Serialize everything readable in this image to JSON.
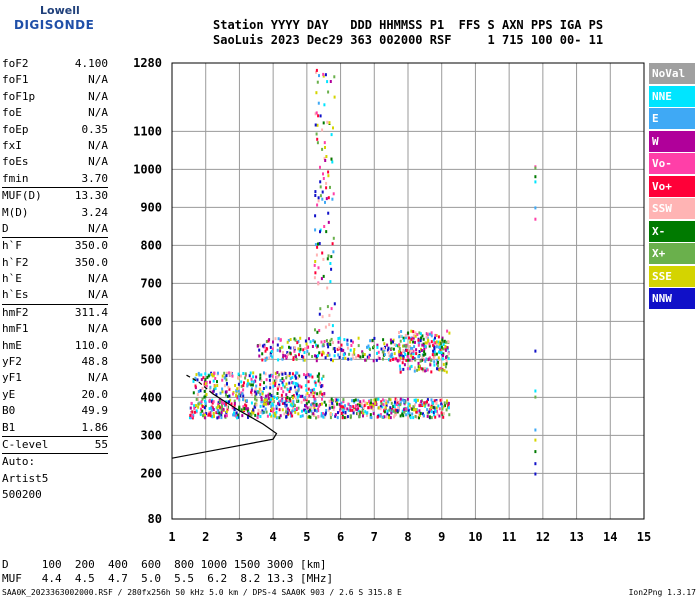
{
  "logo": {
    "line1": "Lowell",
    "line2": "DIGISONDE"
  },
  "header": {
    "row1": "Station YYYY DAY   DDD HHMMSS P1  FFS S AXN PPS IGA PS",
    "row2": "SaoLuis 2023 Dec29 363 002000 RSF     1 715 100 00- 11"
  },
  "params": [
    {
      "key": "foF2",
      "value": "4.100"
    },
    {
      "key": "foF1",
      "value": "N/A"
    },
    {
      "key": "foF1p",
      "value": "N/A"
    },
    {
      "key": "foE",
      "value": "N/A"
    },
    {
      "key": "foEp",
      "value": "0.35"
    },
    {
      "key": "fxI",
      "value": "N/A"
    },
    {
      "key": "foEs",
      "value": "N/A"
    },
    {
      "key": "fmin",
      "value": "3.70",
      "sep_after": true
    },
    {
      "key": "MUF(D)",
      "value": "13.30"
    },
    {
      "key": "M(D)",
      "value": "3.24"
    },
    {
      "key": "D",
      "value": "N/A",
      "sep_after": true
    },
    {
      "key": "h`F",
      "value": "350.0"
    },
    {
      "key": "h`F2",
      "value": "350.0"
    },
    {
      "key": "h`E",
      "value": "N/A"
    },
    {
      "key": "h`Es",
      "value": "N/A",
      "sep_after": true
    },
    {
      "key": "hmF2",
      "value": "311.4"
    },
    {
      "key": "hmF1",
      "value": "N/A"
    },
    {
      "key": "hmE",
      "value": "110.0"
    },
    {
      "key": "yF2",
      "value": "48.8"
    },
    {
      "key": "yF1",
      "value": "N/A"
    },
    {
      "key": "yE",
      "value": "20.0"
    },
    {
      "key": "B0",
      "value": "49.9"
    },
    {
      "key": "B1",
      "value": "1.86",
      "sep_after": true
    },
    {
      "key": "C-level",
      "value": "55",
      "sep_after": true
    }
  ],
  "auto": [
    "Auto:",
    "Artist5",
    "500200"
  ],
  "legend": [
    {
      "label": "NoVal",
      "color": "#a0a0a0"
    },
    {
      "label": "NNE",
      "color": "#00e5ff"
    },
    {
      "label": "E",
      "color": "#3fa9f5"
    },
    {
      "label": "W",
      "color": "#b0009a"
    },
    {
      "label": "Vo-",
      "color": "#ff3fa8"
    },
    {
      "label": "Vo+",
      "color": "#ff0038"
    },
    {
      "label": "SSW",
      "color": "#ffb4b4"
    },
    {
      "label": "X-",
      "color": "#007a00"
    },
    {
      "label": "X+",
      "color": "#6ab04c"
    },
    {
      "label": "SSE",
      "color": "#d4d400"
    },
    {
      "label": "NNW",
      "color": "#1010c8"
    }
  ],
  "chart_data": {
    "type": "scatter",
    "xlim": [
      1,
      15
    ],
    "ylim": [
      80,
      1280
    ],
    "x_ticks": [
      "1",
      "2",
      "3",
      "4",
      "5",
      "6",
      "7",
      "8",
      "9",
      "10",
      "11",
      "12",
      "13",
      "14",
      "15"
    ],
    "y_ticks": [
      80,
      200,
      300,
      400,
      500,
      600,
      700,
      800,
      900,
      1000,
      1100,
      1280
    ],
    "grid": true,
    "regions": [
      {
        "x": [
          1.5,
          9.2
        ],
        "y": [
          350,
          400
        ],
        "density": 0.9
      },
      {
        "x": [
          1.6,
          5.5
        ],
        "y": [
          400,
          470
        ],
        "density": 0.55
      },
      {
        "x": [
          3.5,
          9.2
        ],
        "y": [
          500,
          560
        ],
        "density": 0.45
      },
      {
        "x": [
          7.7,
          9.2
        ],
        "y": [
          470,
          580
        ],
        "density": 0.5
      },
      {
        "x": [
          5.2,
          5.8
        ],
        "y": [
          550,
          1280
        ],
        "density": 0.12
      }
    ],
    "trace": [
      [
        1.0,
        240
      ],
      [
        2.5,
        265
      ],
      [
        4.0,
        290
      ],
      [
        4.1,
        305
      ],
      [
        3.7,
        330
      ],
      [
        3.0,
        365
      ],
      [
        2.2,
        410
      ],
      [
        1.8,
        440
      ],
      [
        1.4,
        460
      ]
    ]
  },
  "footer": {
    "row1": "D     100  200  400  600  800 1000 1500 3000 [km]",
    "row2": "MUF   4.4  4.5  4.7  5.0  5.5  6.2  8.2 13.3 [MHz]"
  },
  "bottom": {
    "left": "SAA0K_2023363002000.RSF / 280fx256h 50 kHz 5.0 km / DPS-4 SAA0K 903 / 2.6 S 315.8 E",
    "right": "Ion2Png 1.3.17"
  }
}
